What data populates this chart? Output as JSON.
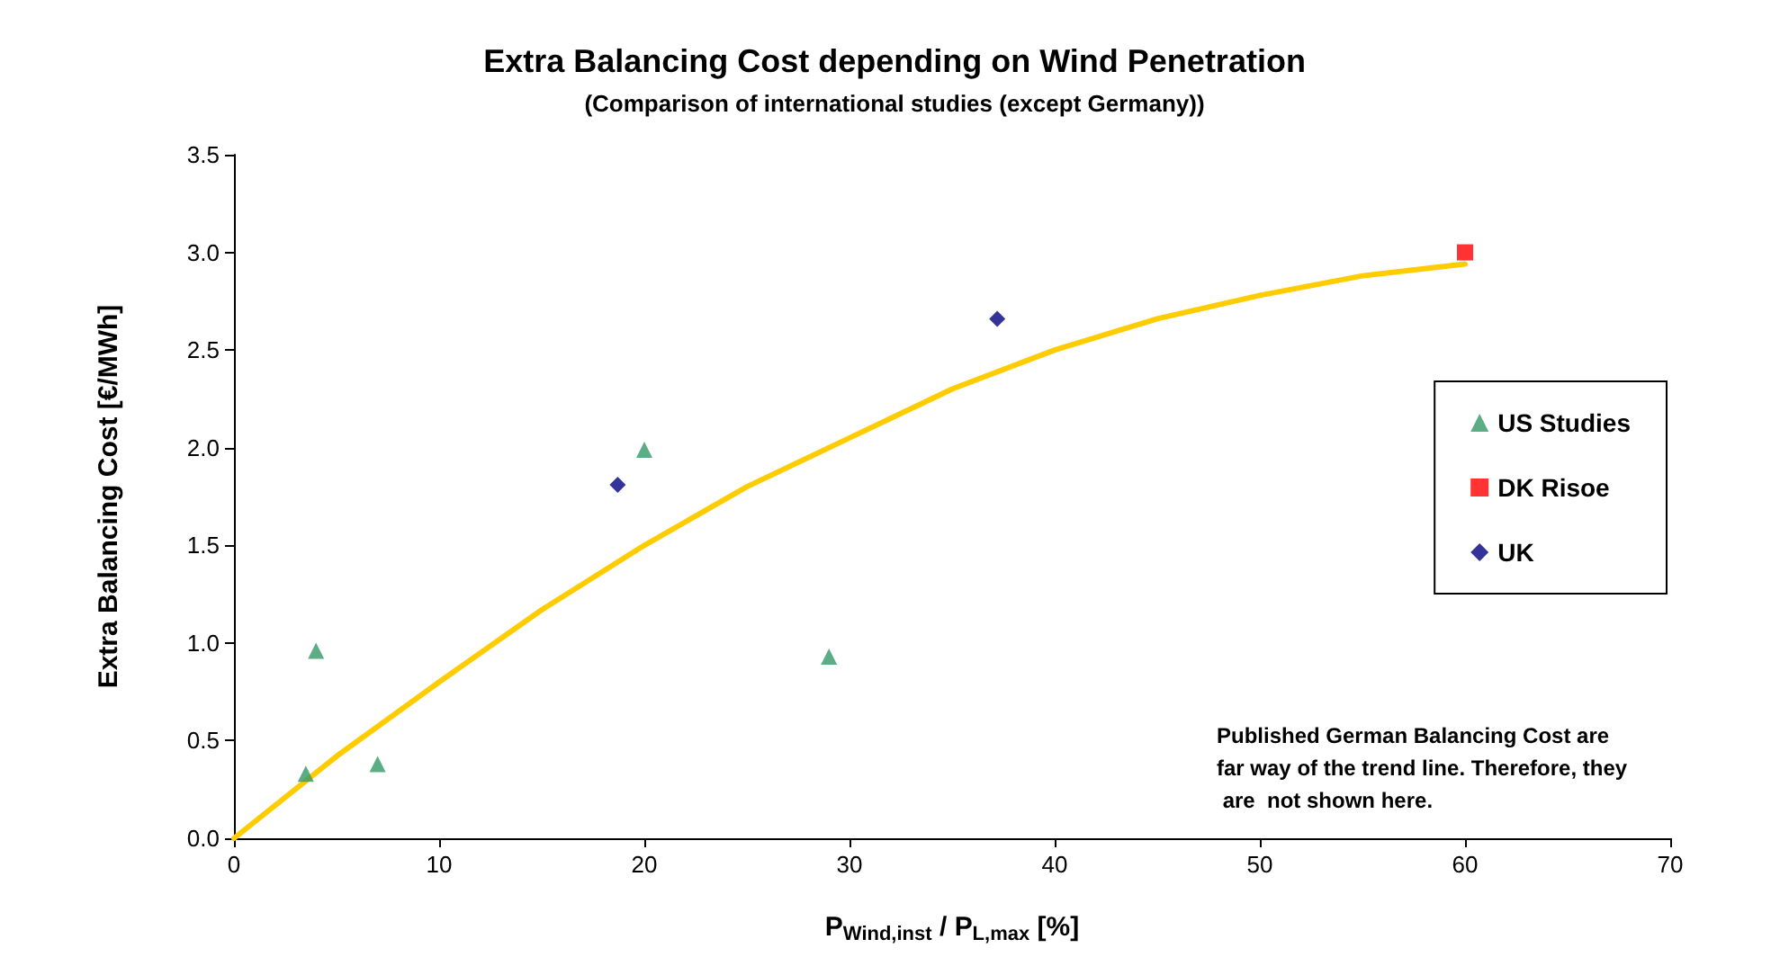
{
  "chart_data": {
    "type": "scatter",
    "title": "Extra Balancing Cost depending on Wind Penetration",
    "subtitle": "(Comparison of international studies (except Germany))",
    "xlabel": "P$_{Wind,inst}$ / P$_{L,max}$ [%]",
    "ylabel": "Extra Balancing Cost [€/MWh]",
    "xlim": [
      0,
      70
    ],
    "xticks": [
      0,
      10,
      20,
      30,
      40,
      50,
      60,
      70
    ],
    "ylim": [
      0,
      3.5
    ],
    "yticks": [
      {
        "value": 0,
        "label": "0.0"
      },
      {
        "value": 0.5,
        "label": "0.5"
      },
      {
        "value": 1,
        "label": "1.0"
      },
      {
        "value": 1.5,
        "label": "1.5"
      },
      {
        "value": 2,
        "label": "2.0"
      },
      {
        "value": 2.5,
        "label": "2.5"
      },
      {
        "value": 3,
        "label": "3.0"
      },
      {
        "value": 3.5,
        "label": "3.5"
      }
    ],
    "grid": false,
    "legend": "right",
    "annotations": [
      "Published German Balancing Cost are far way of the trend line. Therefore, they are  not shown here."
    ],
    "series": [
      {
        "type": "line",
        "color": "#ffcc00",
        "marker": "none",
        "line_style": "solid",
        "x": [
          0,
          5,
          10,
          15,
          20,
          25,
          30,
          35,
          40,
          45,
          50,
          55,
          60
        ],
        "values": [
          0,
          0.42,
          0.8,
          1.17,
          1.5,
          1.8,
          2.05,
          2.3,
          2.5,
          2.66,
          2.78,
          2.88,
          2.94
        ]
      },
      {
        "name": "US Studies",
        "color": "#339966",
        "marker": "triangle",
        "x": [
          3.5,
          4,
          7,
          20,
          29
        ],
        "values": [
          0.33,
          0.96,
          0.38,
          1.99,
          0.93
        ]
      },
      {
        "name": "DK Risoe",
        "color": "#ff0000",
        "marker": "square",
        "x": [
          60
        ],
        "values": [
          3.0
        ]
      },
      {
        "name": "UK",
        "color": "#000080",
        "marker": "diamond",
        "x": [
          18.7,
          37.2
        ],
        "values": [
          1.81,
          2.66
        ]
      }
    ]
  }
}
